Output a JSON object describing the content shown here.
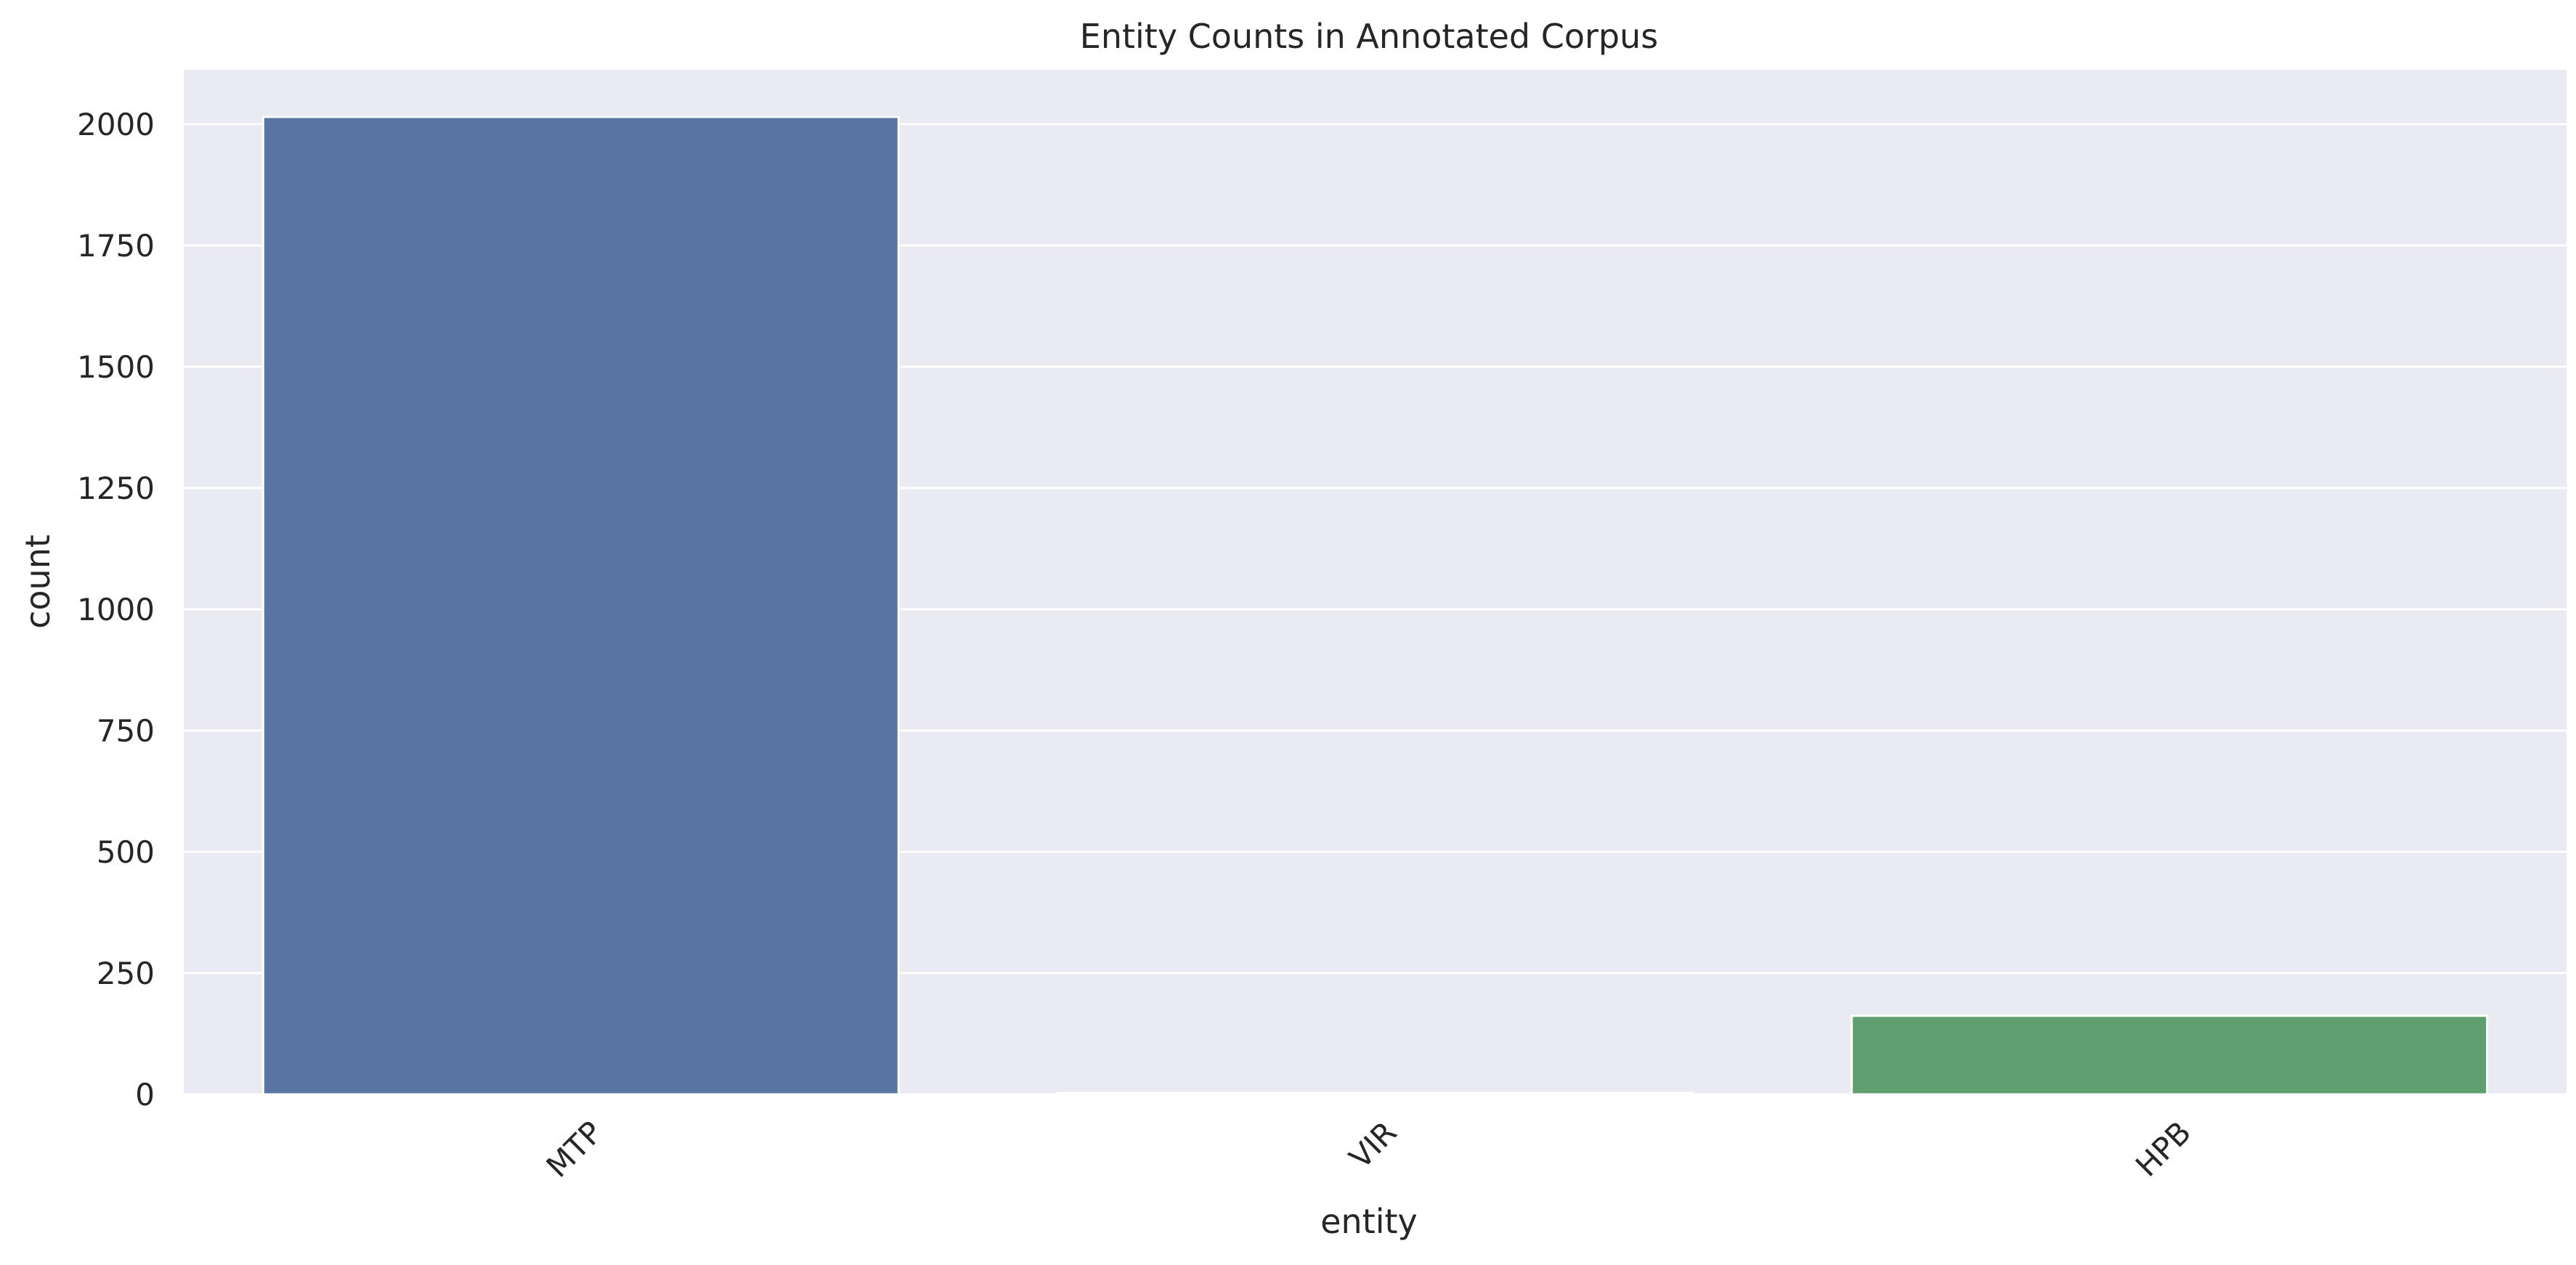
{
  "chart_data": {
    "type": "bar",
    "title": "Entity Counts in Annotated Corpus",
    "xlabel": "entity",
    "ylabel": "count",
    "categories": [
      "MTP",
      "VIR",
      "HPB"
    ],
    "values": [
      2015,
      3,
      162
    ],
    "colors": [
      "#5975a4",
      "#cc8963",
      "#5f9e6e"
    ],
    "ylim": [
      0,
      2110
    ],
    "yticks": [
      0,
      250,
      500,
      750,
      1000,
      1250,
      1500,
      1750,
      2000
    ],
    "grid": true,
    "background": "#eaeaf2"
  }
}
